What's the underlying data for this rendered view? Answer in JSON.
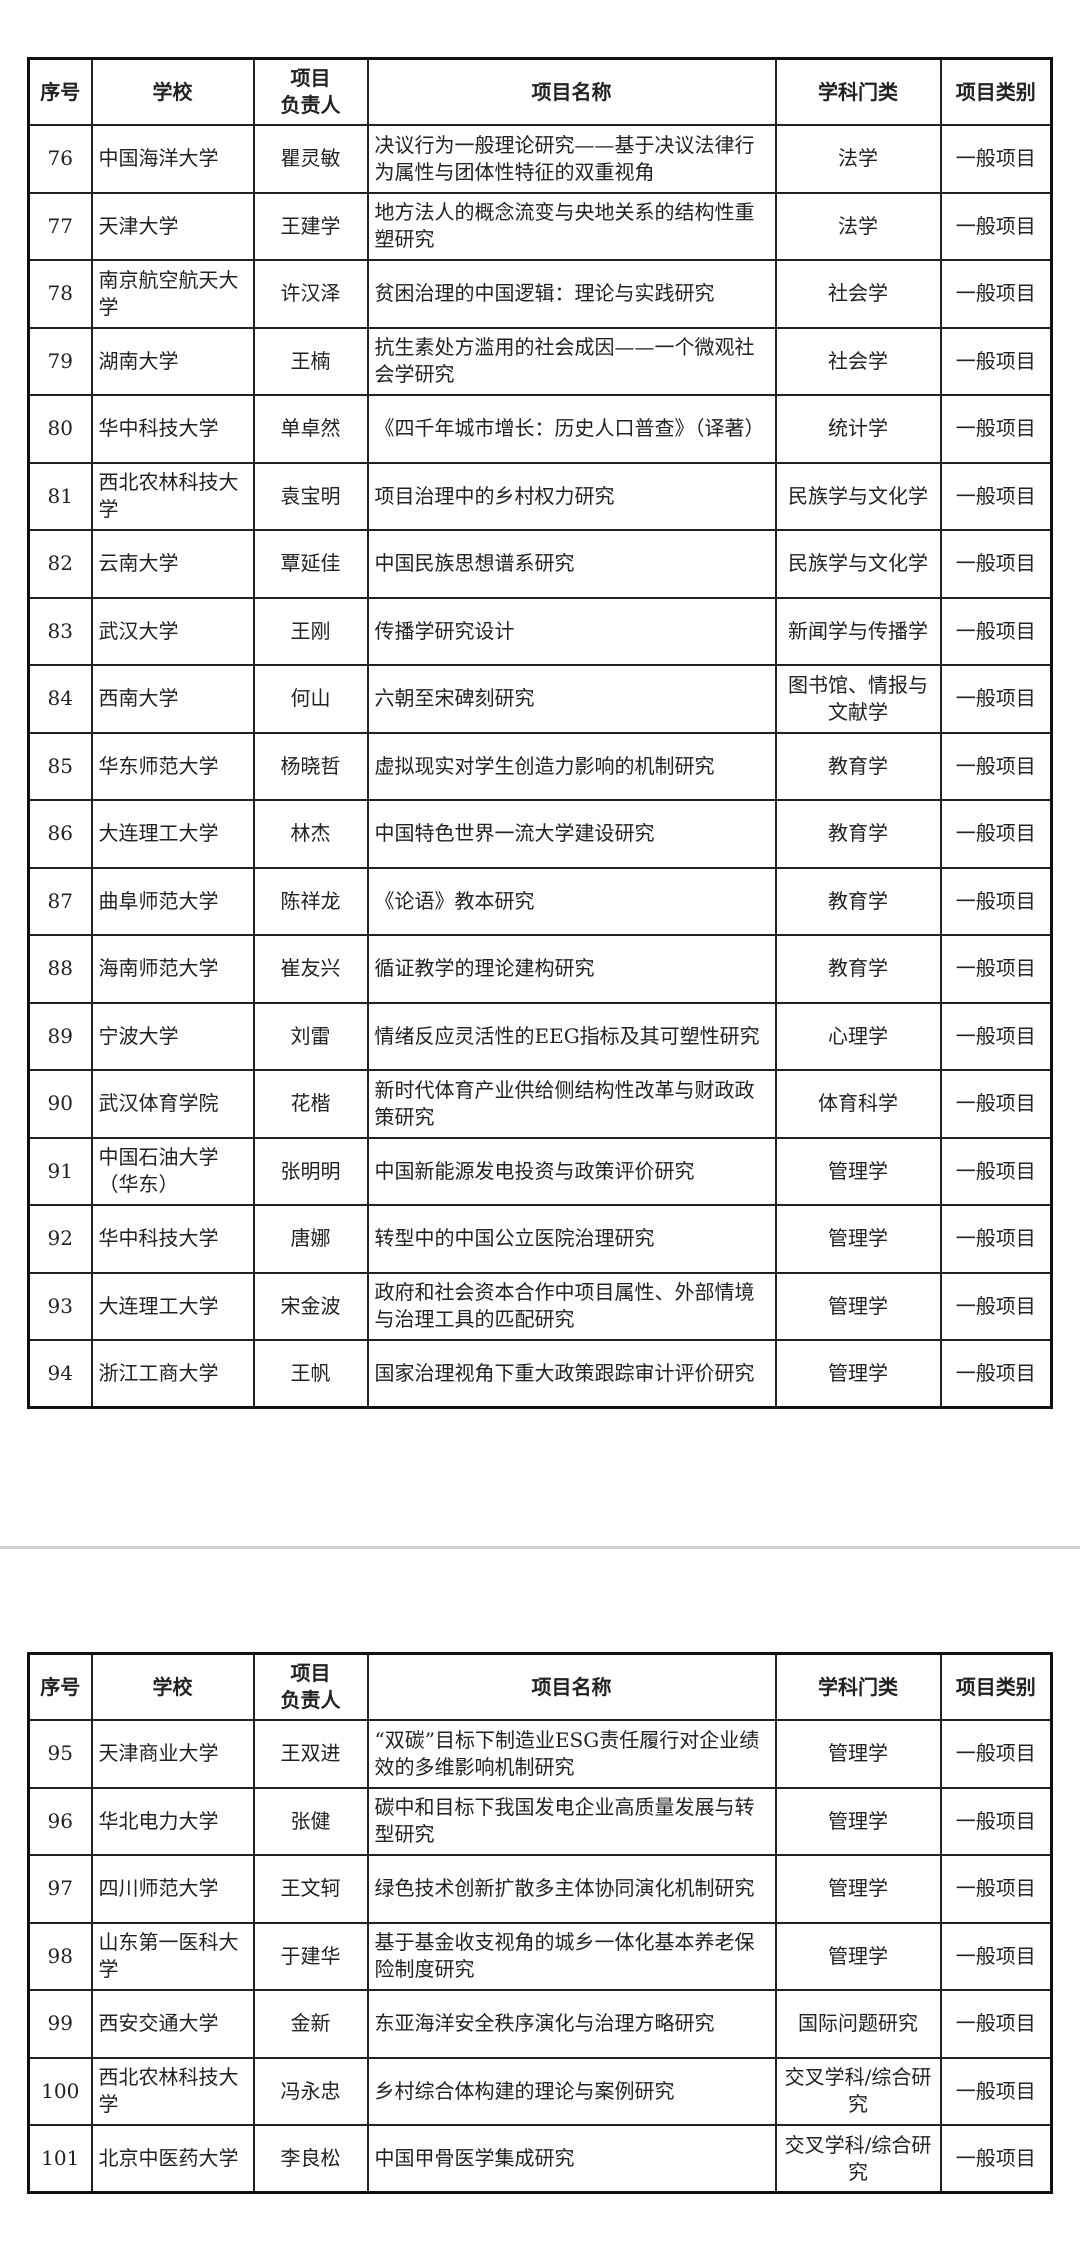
{
  "headers": [
    "序号",
    "学校",
    "项目\n负责人",
    "项目名称",
    "学科门类",
    "项目类别"
  ],
  "page1_rows": [
    {
      "no": "76",
      "school": "中国海洋大学",
      "leader": "瞿灵敏",
      "title": "决议行为一般理论研究——基于决议法律行为属性与团体性特征的双重视角",
      "discipline": "法学",
      "category": "一般项目"
    },
    {
      "no": "77",
      "school": "天津大学",
      "leader": "王建学",
      "title": "地方法人的概念流变与央地关系的结构性重塑研究",
      "discipline": "法学",
      "category": "一般项目"
    },
    {
      "no": "78",
      "school": "南京航空航天大学",
      "leader": "许汉泽",
      "title": "贫困治理的中国逻辑：理论与实践研究",
      "discipline": "社会学",
      "category": "一般项目"
    },
    {
      "no": "79",
      "school": "湖南大学",
      "leader": "王楠",
      "title": "抗生素处方滥用的社会成因——一个微观社会学研究",
      "discipline": "社会学",
      "category": "一般项目"
    },
    {
      "no": "80",
      "school": "华中科技大学",
      "leader": "单卓然",
      "title": "《四千年城市增长：历史人口普查》（译著）",
      "discipline": "统计学",
      "category": "一般项目"
    },
    {
      "no": "81",
      "school": "西北农林科技大学",
      "leader": "袁宝明",
      "title": "项目治理中的乡村权力研究",
      "discipline": "民族学与文化学",
      "category": "一般项目"
    },
    {
      "no": "82",
      "school": "云南大学",
      "leader": "覃延佳",
      "title": "中国民族思想谱系研究",
      "discipline": "民族学与文化学",
      "category": "一般项目"
    },
    {
      "no": "83",
      "school": "武汉大学",
      "leader": "王刚",
      "title": "传播学研究设计",
      "discipline": "新闻学与传播学",
      "category": "一般项目"
    },
    {
      "no": "84",
      "school": "西南大学",
      "leader": "何山",
      "title": "六朝至宋碑刻研究",
      "discipline": "图书馆、情报与文献学",
      "category": "一般项目"
    },
    {
      "no": "85",
      "school": "华东师范大学",
      "leader": "杨晓哲",
      "title": "虚拟现实对学生创造力影响的机制研究",
      "discipline": "教育学",
      "category": "一般项目"
    },
    {
      "no": "86",
      "school": "大连理工大学",
      "leader": "林杰",
      "title": "中国特色世界一流大学建设研究",
      "discipline": "教育学",
      "category": "一般项目"
    },
    {
      "no": "87",
      "school": "曲阜师范大学",
      "leader": "陈祥龙",
      "title": "《论语》教本研究",
      "discipline": "教育学",
      "category": "一般项目"
    },
    {
      "no": "88",
      "school": "海南师范大学",
      "leader": "崔友兴",
      "title": "循证教学的理论建构研究",
      "discipline": "教育学",
      "category": "一般项目"
    },
    {
      "no": "89",
      "school": "宁波大学",
      "leader": "刘雷",
      "title": "情绪反应灵活性的EEG指标及其可塑性研究",
      "discipline": "心理学",
      "category": "一般项目"
    },
    {
      "no": "90",
      "school": "武汉体育学院",
      "leader": "花楷",
      "title": "新时代体育产业供给侧结构性改革与财政政策研究",
      "discipline": "体育科学",
      "category": "一般项目"
    },
    {
      "no": "91",
      "school": "中国石油大学（华东）",
      "leader": "张明明",
      "title": "中国新能源发电投资与政策评价研究",
      "discipline": "管理学",
      "category": "一般项目"
    },
    {
      "no": "92",
      "school": "华中科技大学",
      "leader": "唐娜",
      "title": "转型中的中国公立医院治理研究",
      "discipline": "管理学",
      "category": "一般项目"
    },
    {
      "no": "93",
      "school": "大连理工大学",
      "leader": "宋金波",
      "title": "政府和社会资本合作中项目属性、外部情境与治理工具的匹配研究",
      "discipline": "管理学",
      "category": "一般项目"
    },
    {
      "no": "94",
      "school": "浙江工商大学",
      "leader": "王帆",
      "title": "国家治理视角下重大政策跟踪审计评价研究",
      "discipline": "管理学",
      "category": "一般项目"
    }
  ],
  "page2_rows": [
    {
      "no": "95",
      "school": "天津商业大学",
      "leader": "王双进",
      "title": "“双碳”目标下制造业ESG责任履行对企业绩效的多维影响机制研究",
      "discipline": "管理学",
      "category": "一般项目"
    },
    {
      "no": "96",
      "school": "华北电力大学",
      "leader": "张健",
      "title": "碳中和目标下我国发电企业高质量发展与转型研究",
      "discipline": "管理学",
      "category": "一般项目"
    },
    {
      "no": "97",
      "school": "四川师范大学",
      "leader": "王文轲",
      "title": "绿色技术创新扩散多主体协同演化机制研究",
      "discipline": "管理学",
      "category": "一般项目"
    },
    {
      "no": "98",
      "school": "山东第一医科大学",
      "leader": "于建华",
      "title": "基于基金收支视角的城乡一体化基本养老保险制度研究",
      "discipline": "管理学",
      "category": "一般项目"
    },
    {
      "no": "99",
      "school": "西安交通大学",
      "leader": "金新",
      "title": "东亚海洋安全秩序演化与治理方略研究",
      "discipline": "国际问题研究",
      "category": "一般项目"
    },
    {
      "no": "100",
      "school": "西北农林科技大学",
      "leader": "冯永忠",
      "title": "乡村综合体构建的理论与案例研究",
      "discipline": "交叉学科/综合研究",
      "category": "一般项目"
    },
    {
      "no": "101",
      "school": "北京中医药大学",
      "leader": "李良松",
      "title": "中国甲骨医学集成研究",
      "discipline": "交叉学科/综合研究",
      "category": "一般项目"
    }
  ]
}
